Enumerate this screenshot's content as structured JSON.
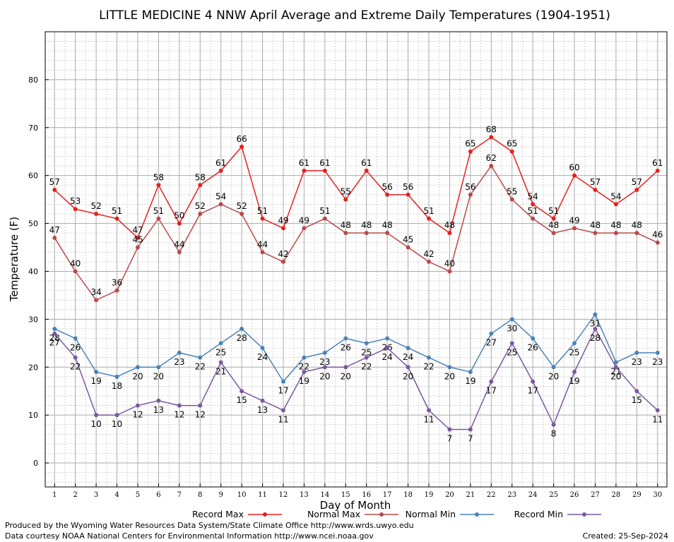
{
  "chart_data": {
    "type": "line",
    "title": "LITTLE MEDICINE 4 NNW April Average and Extreme Daily Temperatures (1904-1951)",
    "xlabel": "Day of Month",
    "ylabel": "Temperature (F)",
    "x": [
      1,
      2,
      3,
      4,
      5,
      6,
      7,
      8,
      9,
      10,
      11,
      12,
      13,
      14,
      15,
      16,
      17,
      18,
      19,
      20,
      21,
      22,
      23,
      24,
      25,
      26,
      27,
      28,
      29,
      30
    ],
    "xlim": [
      0.55,
      30.45
    ],
    "ylim": [
      -5,
      90
    ],
    "yticks": [
      0,
      10,
      20,
      30,
      40,
      50,
      60,
      70,
      80
    ],
    "grid": true,
    "legend_position": "bottom",
    "series": [
      {
        "name": "Record Max",
        "color": "#e8201e",
        "values": [
          57,
          53,
          52,
          51,
          47,
          58,
          50,
          58,
          61,
          66,
          51,
          49,
          61,
          61,
          55,
          61,
          56,
          56,
          51,
          48,
          65,
          68,
          65,
          54,
          51,
          60,
          57,
          54,
          57,
          61
        ]
      },
      {
        "name": "Normal Max",
        "color": "#b84a4a",
        "values": [
          47,
          40,
          34,
          36,
          45,
          51,
          44,
          52,
          54,
          52,
          44,
          42,
          49,
          51,
          48,
          48,
          48,
          45,
          42,
          40,
          56,
          62,
          55,
          51,
          48,
          49,
          48,
          48,
          48,
          46
        ]
      },
      {
        "name": "Normal Min",
        "color": "#4a83b8",
        "values": [
          28,
          26,
          19,
          18,
          20,
          20,
          23,
          22,
          25,
          28,
          24,
          17,
          22,
          23,
          26,
          25,
          26,
          24,
          22,
          20,
          19,
          27,
          30,
          26,
          20,
          25,
          31,
          21,
          23,
          23
        ]
      },
      {
        "name": "Record Min",
        "color": "#7b58a0",
        "values": [
          27,
          22,
          10,
          10,
          12,
          13,
          12,
          12,
          21,
          15,
          13,
          11,
          19,
          20,
          20,
          22,
          24,
          20,
          11,
          7,
          7,
          17,
          25,
          17,
          8,
          19,
          28,
          20,
          15,
          11
        ]
      }
    ]
  },
  "footer": {
    "produced_by": "Produced by the Wyoming Water Resources Data System/State Climate Office http://www.wrds.uwyo.edu",
    "data_courtesy": "Data courtesy NOAA National Centers for Environmental Information http://www.ncei.noaa.gov",
    "created": "Created:  25-Sep-2024"
  }
}
